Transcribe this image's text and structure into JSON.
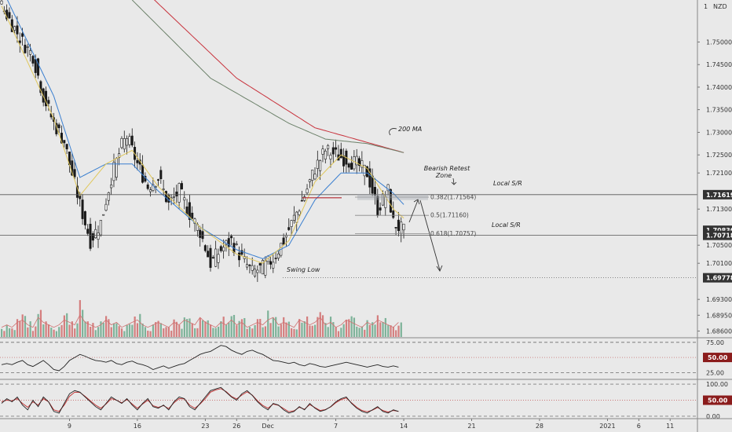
{
  "chart_data": {
    "type": "candlestick",
    "currency": "NZD",
    "price_axis": {
      "ylim": [
        1.6845,
        1.7593
      ],
      "ticks": [
        "1.75000",
        "1.74500",
        "1.74000",
        "1.73500",
        "1.73000",
        "1.72500",
        "1.72100",
        "1.71300",
        "1.70500",
        "1.70100",
        "1.69300",
        "1.68950",
        "1.68600"
      ],
      "tick_values": [
        1.75,
        1.745,
        1.74,
        1.735,
        1.73,
        1.725,
        1.721,
        1.713,
        1.705,
        1.701,
        1.693,
        1.6895,
        1.686
      ]
    },
    "time_axis": {
      "labels": [
        "9",
        "16",
        "23",
        "26",
        "Dec",
        "7",
        "14",
        "21",
        "28",
        "2021",
        "6",
        "11"
      ],
      "label_positions_bar": [
        13,
        26,
        39,
        45,
        51,
        64,
        77,
        90,
        103,
        116,
        122,
        128
      ]
    },
    "close_points": [
      [
        0,
        1.758
      ],
      [
        2,
        1.754
      ],
      [
        4,
        1.75
      ],
      [
        6,
        1.747
      ],
      [
        8,
        1.738
      ],
      [
        10,
        1.732
      ],
      [
        12,
        1.728
      ],
      [
        13,
        1.723
      ],
      [
        15,
        1.714
      ],
      [
        17,
        1.706
      ],
      [
        19,
        1.71
      ],
      [
        21,
        1.72
      ],
      [
        23,
        1.727
      ],
      [
        24,
        1.729
      ],
      [
        26,
        1.723
      ],
      [
        28,
        1.718
      ],
      [
        30,
        1.72
      ],
      [
        32,
        1.714
      ],
      [
        34,
        1.717
      ],
      [
        36,
        1.712
      ],
      [
        38,
        1.708
      ],
      [
        40,
        1.701
      ],
      [
        42,
        1.704
      ],
      [
        44,
        1.706
      ],
      [
        46,
        1.702
      ],
      [
        48,
        1.699
      ],
      [
        50,
        1.7
      ],
      [
        52,
        1.702
      ],
      [
        54,
        1.706
      ],
      [
        56,
        1.711
      ],
      [
        58,
        1.716
      ],
      [
        60,
        1.722
      ],
      [
        62,
        1.726
      ],
      [
        64,
        1.725
      ],
      [
        66,
        1.724
      ],
      [
        68,
        1.723
      ],
      [
        70,
        1.721
      ],
      [
        72,
        1.713
      ],
      [
        74,
        1.717
      ],
      [
        75,
        1.71
      ],
      [
        77,
        1.708
      ]
    ],
    "candle_width_bars": 1,
    "moving_averages": [
      {
        "name": "200 MA",
        "color": "#c8323c",
        "points": [
          [
            25,
            1.764
          ],
          [
            45,
            1.742
          ],
          [
            60,
            1.731
          ],
          [
            77,
            1.7255
          ]
        ]
      },
      {
        "name": "",
        "color": "#6b8069",
        "points": [
          [
            25,
            1.7593
          ],
          [
            40,
            1.742
          ],
          [
            55,
            1.732
          ],
          [
            62,
            1.7285
          ],
          [
            70,
            1.7275
          ],
          [
            77,
            1.7255
          ]
        ]
      },
      {
        "name": "",
        "color": "#3a7fd0",
        "points": [
          [
            0,
            1.762
          ],
          [
            10,
            1.738
          ],
          [
            15,
            1.72
          ],
          [
            20,
            1.723
          ],
          [
            25,
            1.723
          ],
          [
            30,
            1.717
          ],
          [
            38,
            1.709
          ],
          [
            45,
            1.704
          ],
          [
            50,
            1.702
          ],
          [
            55,
            1.705
          ],
          [
            60,
            1.715
          ],
          [
            65,
            1.721
          ],
          [
            70,
            1.721
          ],
          [
            75,
            1.7165
          ],
          [
            77,
            1.714
          ]
        ]
      },
      {
        "name": "",
        "color": "#e0c75a",
        "points": [
          [
            0,
            1.758
          ],
          [
            10,
            1.733
          ],
          [
            15,
            1.716
          ],
          [
            20,
            1.723
          ],
          [
            25,
            1.726
          ],
          [
            30,
            1.718
          ],
          [
            38,
            1.709
          ],
          [
            45,
            1.703
          ],
          [
            50,
            1.701
          ],
          [
            55,
            1.706
          ],
          [
            60,
            1.719
          ],
          [
            65,
            1.725
          ],
          [
            70,
            1.722
          ],
          [
            75,
            1.713
          ],
          [
            77,
            1.711
          ]
        ]
      }
    ],
    "horizontal_levels": [
      {
        "value": 1.71619,
        "label": "1.71619",
        "badge_color": "#333333",
        "note": "Local S/R",
        "style": "solid"
      },
      {
        "value": 1.7083,
        "label": "1.70830",
        "badge_color": "#333333",
        "style": "none"
      },
      {
        "value": 1.70718,
        "label": "1.70718",
        "badge_color": "#333333",
        "note": "Local S/R",
        "style": "solid"
      },
      {
        "value": 1.69778,
        "label": "1.69778",
        "badge_color": "#333333",
        "note": "Swing Low",
        "style": "dotted"
      }
    ],
    "fib_levels": [
      {
        "ratio": "0.382",
        "value": "1.71564"
      },
      {
        "ratio": "0.5",
        "value": "1.71160"
      },
      {
        "ratio": "0.618",
        "value": "1.70757"
      }
    ],
    "annotations": [
      {
        "text": "200 MA"
      },
      {
        "text": "Bearish Retest"
      },
      {
        "text": "Zone"
      },
      {
        "text": "Swing Low"
      }
    ],
    "volume_bars": [
      2,
      3,
      2,
      4,
      5,
      3,
      2,
      6,
      4,
      3,
      2,
      3,
      5,
      4,
      3,
      7,
      4,
      3,
      2,
      3,
      5,
      3,
      4,
      2,
      3,
      4,
      5,
      3,
      2,
      3,
      4,
      3,
      2,
      4,
      3,
      5,
      4,
      3,
      6,
      4,
      3,
      2,
      4,
      3,
      5,
      3,
      4,
      2,
      3,
      4,
      3,
      5,
      6,
      3,
      4,
      3,
      2,
      5,
      4,
      3,
      4,
      6,
      3,
      4,
      2,
      3,
      5,
      4,
      3,
      2,
      4,
      3,
      5,
      4,
      3,
      2,
      4
    ],
    "rsi": {
      "levels": [
        {
          "value": "75.00"
        },
        {
          "value": "50.00",
          "badge": true
        },
        {
          "value": "25.00"
        }
      ],
      "ylim": [
        15,
        80
      ],
      "values": [
        38,
        40,
        38,
        42,
        45,
        38,
        35,
        40,
        45,
        38,
        30,
        28,
        35,
        45,
        50,
        55,
        52,
        48,
        45,
        44,
        42,
        45,
        40,
        38,
        42,
        44,
        40,
        38,
        35,
        30,
        33,
        36,
        32,
        35,
        38,
        40,
        45,
        50,
        55,
        58,
        60,
        65,
        70,
        68,
        62,
        58,
        55,
        60,
        62,
        58,
        55,
        50,
        45,
        44,
        42,
        40,
        42,
        38,
        36,
        40,
        38,
        35,
        34,
        36,
        38,
        40,
        42,
        40,
        38,
        36,
        34,
        36,
        38,
        35,
        34,
        36,
        34
      ]
    },
    "stoch": {
      "levels": [
        {
          "value": "100.00"
        },
        {
          "value": "50.00",
          "badge": true
        },
        {
          "value": "0.00"
        }
      ],
      "ylim": [
        -5,
        110
      ],
      "k": [
        40,
        55,
        45,
        60,
        35,
        20,
        50,
        30,
        60,
        45,
        15,
        10,
        40,
        70,
        80,
        75,
        60,
        45,
        30,
        20,
        40,
        60,
        50,
        40,
        55,
        35,
        20,
        40,
        55,
        30,
        25,
        35,
        20,
        45,
        60,
        55,
        30,
        20,
        40,
        60,
        80,
        85,
        90,
        75,
        60,
        50,
        70,
        80,
        65,
        45,
        30,
        20,
        40,
        35,
        20,
        10,
        15,
        30,
        20,
        40,
        25,
        15,
        20,
        30,
        45,
        55,
        60,
        40,
        25,
        15,
        10,
        20,
        30,
        15,
        10,
        20,
        15
      ],
      "d": [
        45,
        50,
        48,
        55,
        40,
        28,
        45,
        35,
        55,
        45,
        20,
        15,
        35,
        62,
        75,
        74,
        62,
        48,
        35,
        25,
        38,
        55,
        50,
        42,
        52,
        38,
        25,
        38,
        50,
        33,
        28,
        33,
        24,
        42,
        55,
        54,
        35,
        25,
        38,
        55,
        75,
        82,
        86,
        77,
        62,
        54,
        66,
        76,
        66,
        48,
        34,
        25,
        38,
        34,
        24,
        14,
        17,
        28,
        22,
        36,
        27,
        18,
        21,
        29,
        42,
        52,
        57,
        42,
        28,
        18,
        14,
        19,
        27,
        18,
        13,
        18,
        15
      ]
    },
    "grid": false,
    "legend": "none"
  }
}
